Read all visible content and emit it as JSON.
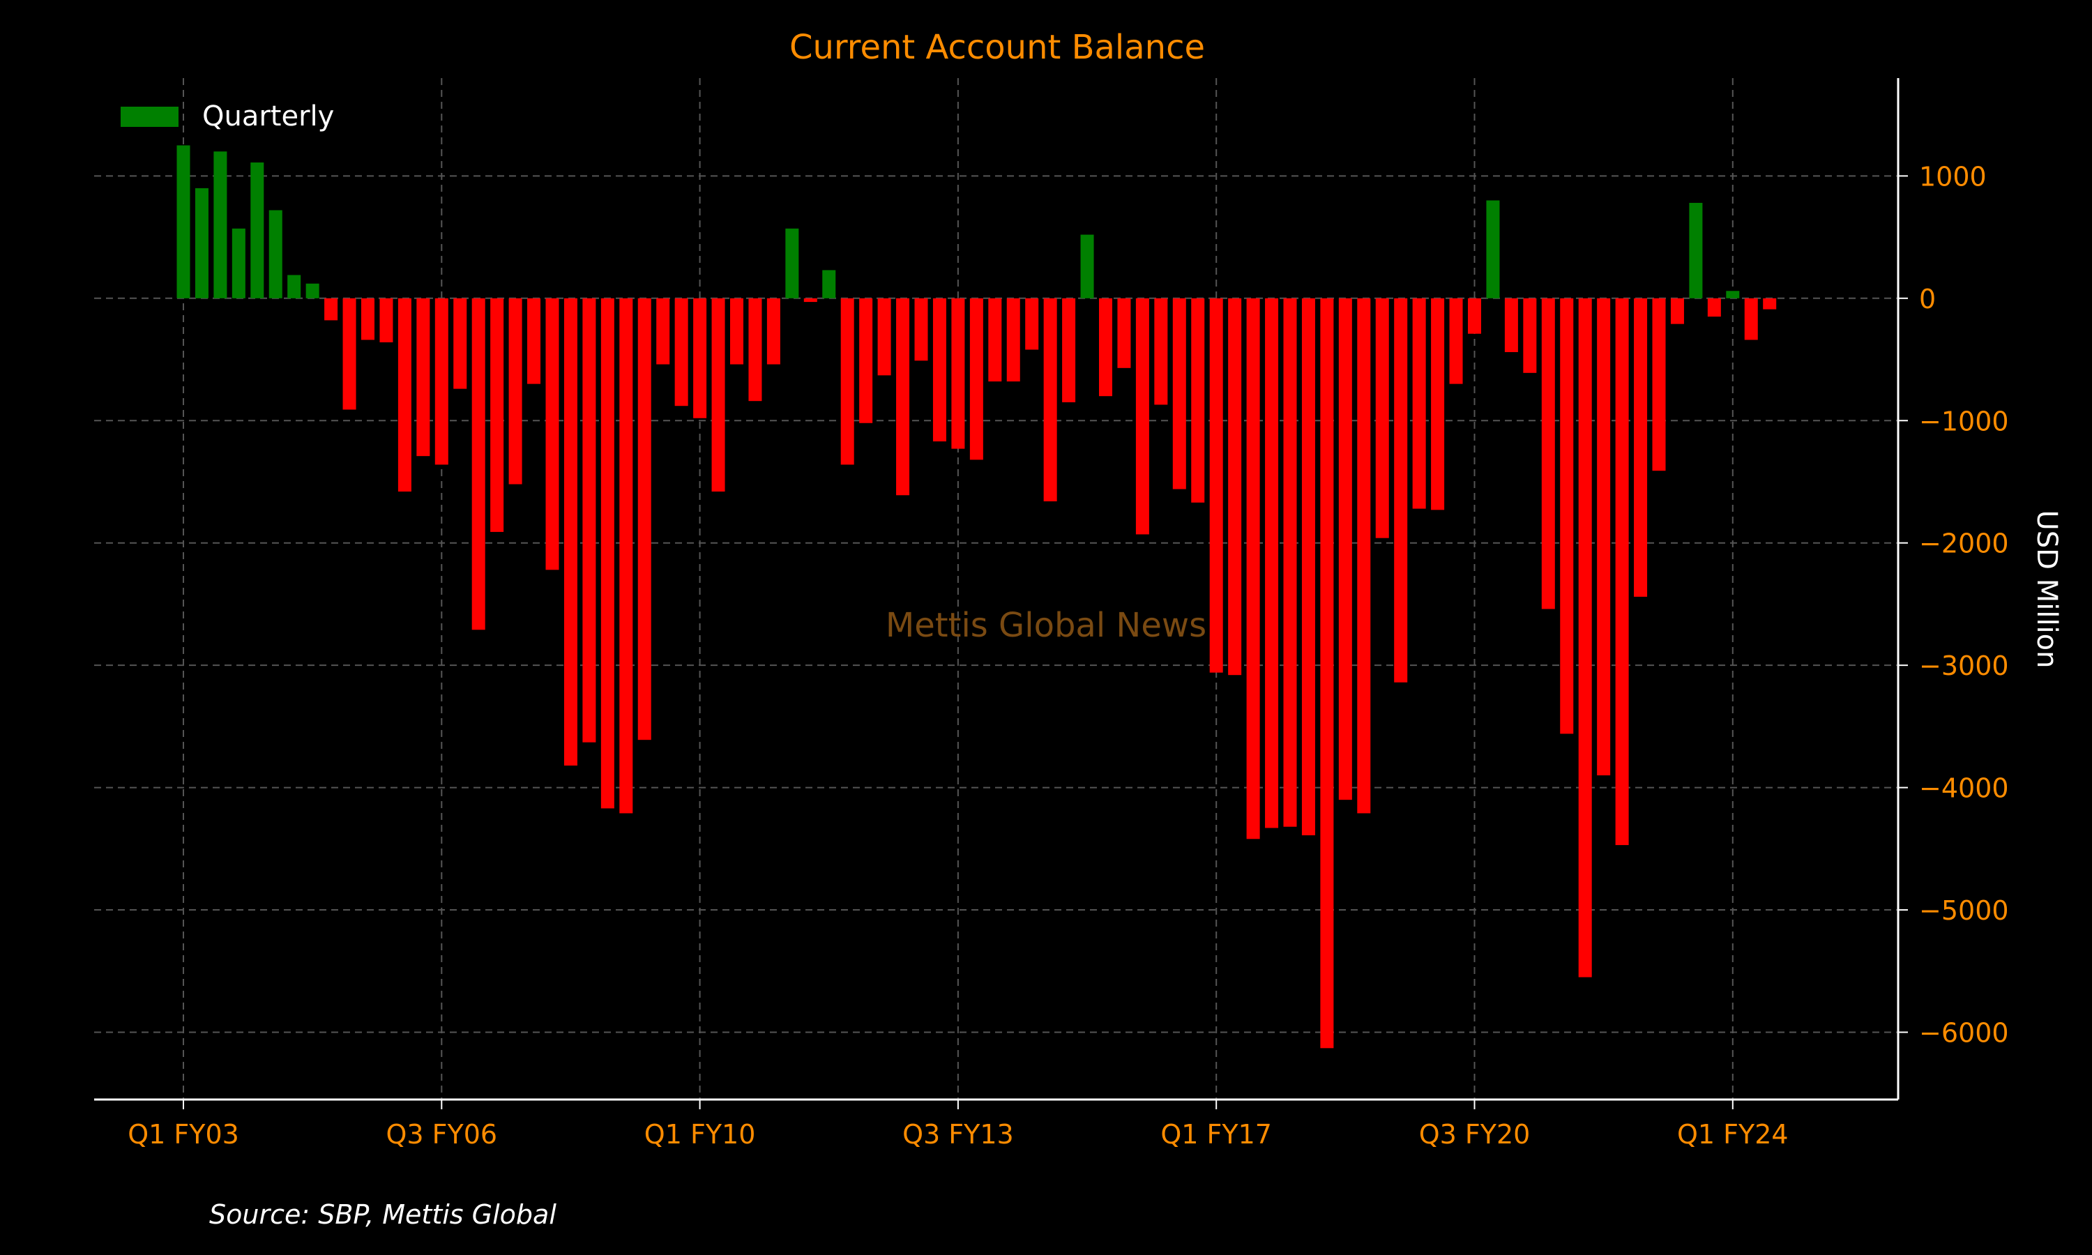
{
  "chart_data": {
    "type": "bar",
    "title": "Current Account Balance",
    "ylabel": "USD Million",
    "legend": {
      "label": "Quarterly",
      "placement": "top-left"
    },
    "watermark": "Mettis Global News",
    "source": "Source: SBP, Mettis Global",
    "ylim": [
      -6550,
      1800
    ],
    "yticks": [
      1000,
      0,
      -1000,
      -2000,
      -3000,
      -4000,
      -5000,
      -6000
    ],
    "ytick_labels": [
      "1000",
      "0",
      "−1000",
      "−2000",
      "−3000",
      "−4000",
      "−5000",
      "−6000"
    ],
    "xtick_indices": [
      0,
      14,
      28,
      42,
      56,
      70,
      84
    ],
    "xtick_labels": [
      "Q1 FY03",
      "Q3 FY06",
      "Q1 FY10",
      "Q3 FY13",
      "Q1 FY17",
      "Q3 FY20",
      "Q1 FY24"
    ],
    "grid": true,
    "colors": {
      "positive": "#008000",
      "negative": "#ff0000",
      "title": "#ff8c00",
      "ticks": "#ff8c00",
      "watermark": "#7a4a12",
      "axis": "#ffffff",
      "grid": "#555555"
    },
    "values": [
      1250,
      900,
      1200,
      570,
      1110,
      720,
      190,
      120,
      -180,
      -910,
      -340,
      -360,
      -1580,
      -1290,
      -1360,
      -740,
      -2710,
      -1910,
      -1520,
      -700,
      -2220,
      -3820,
      -3630,
      -4170,
      -4210,
      -3610,
      -540,
      -880,
      -980,
      -1580,
      -540,
      -840,
      -540,
      570,
      -30,
      230,
      -1360,
      -1020,
      -630,
      -1610,
      -510,
      -1170,
      -1230,
      -1320,
      -680,
      -680,
      -420,
      -1660,
      -850,
      520,
      -800,
      -570,
      -1930,
      -870,
      -1560,
      -1670,
      -3060,
      -3080,
      -4420,
      -4330,
      -4320,
      -4390,
      -6130,
      -4100,
      -4210,
      -1960,
      -3140,
      -1720,
      -1730,
      -700,
      -290,
      800,
      -440,
      -610,
      -2540,
      -3560,
      -5550,
      -3900,
      -4470,
      -2440,
      -1410,
      -210,
      780,
      -150,
      60,
      -340,
      -90
    ]
  }
}
